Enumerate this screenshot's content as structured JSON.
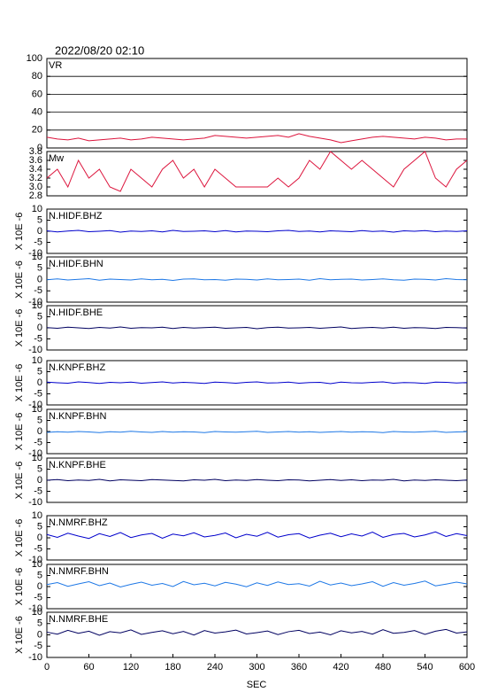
{
  "chart_data": {
    "type": "line",
    "title": "2022/08/20 02:10",
    "xlabel": "SEC",
    "x": [
      0,
      15,
      30,
      45,
      60,
      75,
      90,
      105,
      120,
      135,
      150,
      165,
      180,
      195,
      210,
      225,
      240,
      255,
      270,
      285,
      300,
      315,
      330,
      345,
      360,
      375,
      390,
      405,
      420,
      435,
      450,
      465,
      480,
      495,
      510,
      525,
      540,
      555,
      570,
      585,
      600
    ],
    "xlim": [
      0,
      600
    ],
    "xticks": [
      0,
      60,
      120,
      180,
      240,
      300,
      360,
      420,
      480,
      540,
      600
    ],
    "panels": [
      {
        "label": "VR",
        "color": "#dc143c",
        "ylim": [
          0,
          100
        ],
        "yticks": [
          0,
          20,
          40,
          60,
          80,
          100
        ],
        "grid": true,
        "values": [
          12,
          10,
          9,
          11,
          8,
          9,
          10,
          11,
          9,
          10,
          12,
          11,
          10,
          9,
          10,
          11,
          14,
          13,
          12,
          11,
          12,
          13,
          14,
          12,
          16,
          13,
          11,
          9,
          6,
          8,
          10,
          12,
          13,
          12,
          11,
          10,
          12,
          11,
          9,
          10,
          10
        ]
      },
      {
        "label": "Mw",
        "color": "#dc143c",
        "ylim": [
          2.8,
          3.8
        ],
        "yticks": [
          2.8,
          {
            "value": 3,
            "label": "3.0"
          },
          3.2,
          3.4,
          3.6,
          3.8
        ],
        "grid": false,
        "values": [
          3.2,
          3.4,
          3.0,
          3.6,
          3.2,
          3.4,
          3.0,
          2.9,
          3.4,
          3.2,
          3.0,
          3.4,
          3.6,
          3.2,
          3.4,
          3.0,
          3.4,
          3.2,
          3.0,
          3.0,
          3.0,
          3.0,
          3.2,
          3.0,
          3.2,
          3.6,
          3.4,
          3.8,
          3.6,
          3.4,
          3.6,
          3.4,
          3.2,
          3.0,
          3.4,
          3.6,
          3.8,
          3.2,
          3.0,
          3.4,
          3.6
        ]
      },
      {
        "label": "N.HIDF.BHZ",
        "ylabel": "X 10E -6",
        "color": "#0000cc",
        "ylim": [
          -10,
          10
        ],
        "yticks": [
          -10,
          -5,
          0,
          5,
          10
        ],
        "grid": false,
        "values": [
          0.2,
          -0.3,
          0.1,
          0.4,
          -0.2,
          0.0,
          0.3,
          -0.4,
          0.1,
          -0.1,
          0.2,
          -0.3,
          0.4,
          -0.1,
          0.0,
          0.2,
          -0.2,
          0.3,
          -0.3,
          0.1,
          0.0,
          -0.2,
          0.2,
          0.4,
          -0.1,
          0.1,
          -0.3,
          0.2,
          0.0,
          -0.2,
          0.3,
          -0.1,
          0.1,
          -0.4,
          0.2,
          0.0,
          0.3,
          -0.2,
          0.1,
          -0.1,
          0.2
        ]
      },
      {
        "label": "N.HIDF.BHN",
        "ylabel": "X 10E -6",
        "color": "#1e78e6",
        "ylim": [
          -10,
          10
        ],
        "yticks": [
          -10,
          -5,
          0,
          5,
          10
        ],
        "grid": false,
        "values": [
          -0.1,
          0.3,
          -0.2,
          0.1,
          0.4,
          -0.3,
          0.2,
          0.0,
          -0.2,
          0.3,
          -0.1,
          0.1,
          -0.4,
          0.2,
          0.3,
          -0.1,
          0.0,
          -0.3,
          0.2,
          0.1,
          -0.2,
          0.3,
          -0.1,
          0.0,
          0.2,
          -0.3,
          0.4,
          -0.1,
          0.1,
          0.2,
          -0.2,
          0.0,
          0.3,
          -0.1,
          -0.3,
          0.2,
          0.1,
          -0.2,
          0.4,
          0.0,
          -0.1
        ]
      },
      {
        "label": "N.HIDF.BHE",
        "ylabel": "X 10E -6",
        "color": "#000060",
        "ylim": [
          -10,
          10
        ],
        "yticks": [
          -10,
          -5,
          0,
          5,
          10
        ],
        "grid": false,
        "values": [
          0.1,
          -0.2,
          0.3,
          0.0,
          -0.3,
          0.2,
          -0.1,
          0.4,
          -0.2,
          0.1,
          0.0,
          0.3,
          -0.3,
          0.2,
          -0.1,
          0.1,
          0.3,
          -0.2,
          0.0,
          0.2,
          -0.4,
          0.1,
          0.3,
          -0.1,
          0.0,
          0.2,
          -0.2,
          0.1,
          0.4,
          -0.3,
          0.0,
          0.2,
          -0.1,
          0.3,
          -0.2,
          0.1,
          0.0,
          -0.3,
          0.2,
          0.1,
          -0.1
        ]
      },
      {
        "label": "N.KNPF.BHZ",
        "ylabel": "X 10E -6",
        "color": "#0000cc",
        "ylim": [
          -10,
          10
        ],
        "yticks": [
          -10,
          -5,
          0,
          5,
          10
        ],
        "grid": false,
        "values": [
          0.3,
          0.0,
          -0.2,
          0.4,
          0.1,
          -0.3,
          0.2,
          0.0,
          0.3,
          -0.2,
          0.1,
          0.4,
          -0.1,
          0.2,
          0.0,
          -0.3,
          0.3,
          0.1,
          -0.2,
          0.2,
          0.4,
          -0.1,
          0.0,
          0.3,
          -0.2,
          0.1,
          0.2,
          -0.4,
          0.3,
          0.0,
          -0.1,
          0.2,
          0.4,
          -0.2,
          0.1,
          0.0,
          -0.3,
          0.3,
          0.2,
          -0.1,
          0.1
        ]
      },
      {
        "label": "N.KNPF.BHN",
        "ylabel": "X 10E -6",
        "color": "#1e78e6",
        "ylim": [
          -10,
          10
        ],
        "yticks": [
          -10,
          -5,
          0,
          5,
          10
        ],
        "grid": false,
        "values": [
          -0.4,
          -0.1,
          -0.3,
          0.0,
          -0.2,
          -0.5,
          -0.1,
          -0.3,
          0.1,
          -0.2,
          -0.4,
          0.0,
          -0.3,
          -0.1,
          -0.2,
          -0.5,
          0.0,
          -0.2,
          -0.3,
          -0.1,
          0.1,
          -0.4,
          -0.2,
          0.0,
          -0.3,
          -0.1,
          -0.4,
          -0.2,
          0.0,
          -0.3,
          -0.1,
          -0.2,
          -0.5,
          0.0,
          -0.2,
          -0.3,
          -0.1,
          0.1,
          -0.4,
          -0.2,
          -0.1
        ]
      },
      {
        "label": "N.KNPF.BHE",
        "ylabel": "X 10E -6",
        "color": "#000060",
        "ylim": [
          -10,
          10
        ],
        "yticks": [
          -10,
          -5,
          0,
          5,
          10
        ],
        "grid": false,
        "values": [
          0.0,
          0.3,
          -0.2,
          0.1,
          -0.1,
          0.4,
          -0.3,
          0.2,
          0.0,
          -0.2,
          0.3,
          0.1,
          -0.1,
          -0.3,
          0.2,
          0.0,
          0.4,
          -0.2,
          0.1,
          -0.1,
          0.3,
          0.0,
          -0.2,
          0.2,
          0.1,
          -0.3,
          0.0,
          0.3,
          -0.1,
          0.2,
          -0.2,
          0.1,
          0.0,
          0.4,
          -0.3,
          0.1,
          -0.1,
          0.2,
          0.0,
          -0.2,
          0.1
        ]
      },
      {
        "label": "N.NMRF.BHZ",
        "ylabel": "X 10E -6",
        "color": "#0000cc",
        "ylim": [
          -10,
          10
        ],
        "yticks": [
          -10,
          -5,
          0,
          5,
          10
        ],
        "grid": false,
        "values": [
          1.5,
          0.2,
          2.1,
          0.8,
          -0.3,
          1.9,
          0.6,
          2.4,
          0.1,
          1.3,
          2.0,
          -0.2,
          1.7,
          0.9,
          2.3,
          0.4,
          1.1,
          2.2,
          0.0,
          1.6,
          0.7,
          2.5,
          0.3,
          1.4,
          1.9,
          -0.1,
          1.2,
          2.1,
          0.5,
          1.8,
          0.8,
          2.6,
          0.2,
          1.5,
          2.0,
          0.4,
          1.3,
          2.7,
          0.6,
          1.9,
          1.0
        ]
      },
      {
        "label": "N.NMRF.BHN",
        "ylabel": "X 10E -6",
        "color": "#1e78e6",
        "ylim": [
          -10,
          10
        ],
        "yticks": [
          -10,
          -5,
          0,
          5,
          10
        ],
        "grid": false,
        "values": [
          0.9,
          1.8,
          0.1,
          1.2,
          2.2,
          0.4,
          1.6,
          -0.2,
          1.0,
          2.0,
          0.6,
          1.4,
          0.0,
          2.3,
          0.8,
          1.5,
          0.3,
          1.9,
          1.1,
          -0.1,
          1.7,
          0.5,
          2.1,
          0.9,
          1.3,
          0.2,
          2.4,
          0.7,
          1.6,
          0.4,
          1.2,
          2.2,
          0.1,
          1.8,
          0.6,
          1.4,
          2.5,
          0.3,
          1.1,
          2.0,
          1.2
        ]
      },
      {
        "label": "N.NMRF.BHE",
        "ylabel": "X 10E -6",
        "color": "#000060",
        "ylim": [
          -10,
          10
        ],
        "yticks": [
          -10,
          -5,
          0,
          5,
          10
        ],
        "grid": false,
        "values": [
          1.2,
          0.3,
          2.0,
          0.7,
          1.6,
          -0.2,
          1.4,
          0.9,
          2.2,
          0.2,
          1.1,
          1.8,
          0.5,
          1.5,
          -0.1,
          1.9,
          0.8,
          1.3,
          2.1,
          0.4,
          1.0,
          1.7,
          0.1,
          1.4,
          2.0,
          0.6,
          1.2,
          0.0,
          1.8,
          0.9,
          1.5,
          0.3,
          2.3,
          0.7,
          1.1,
          1.9,
          0.2,
          1.6,
          2.4,
          0.8,
          1.3
        ]
      }
    ]
  }
}
